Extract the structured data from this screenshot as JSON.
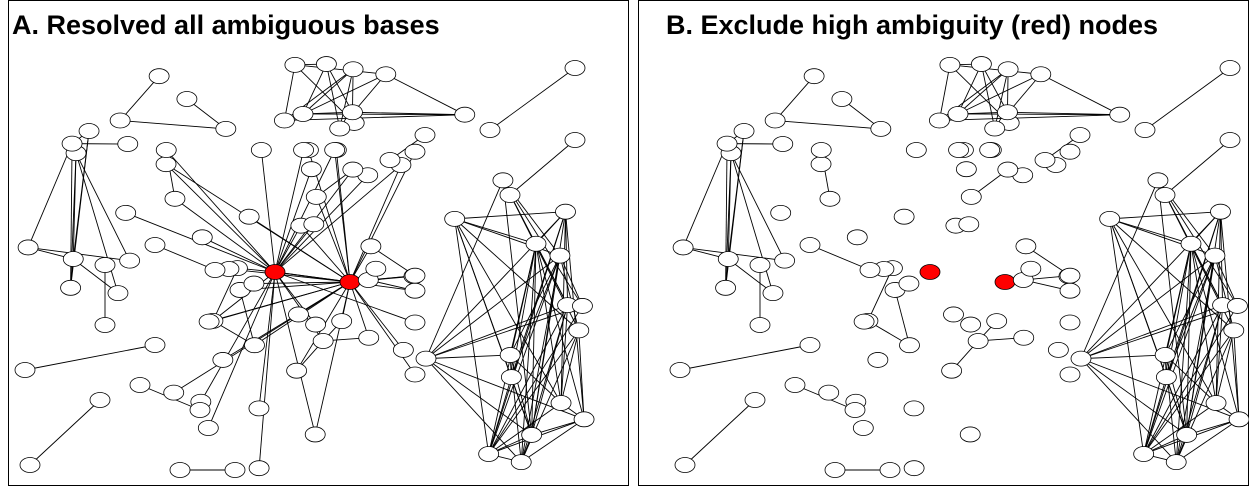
{
  "panels": [
    {
      "title": "A. Resolved all ambiguous bases"
    },
    {
      "title": "B. Exclude high ambiguity (red) nodes"
    }
  ]
}
